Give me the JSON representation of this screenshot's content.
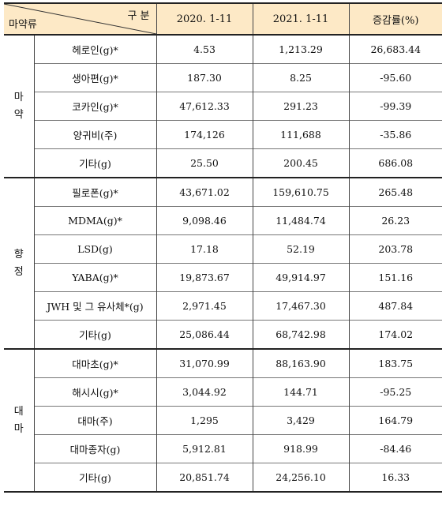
{
  "header": {
    "corner_top": "구 분",
    "corner_bottom": "마약류",
    "col1": "2020. 1-11",
    "col2": "2021. 1-11",
    "col3": "증감률(%)"
  },
  "groups": [
    {
      "category": "마\n약",
      "rows": [
        {
          "item": "헤로인(g)*",
          "v2020": "4.53",
          "v2021": "1,213.29",
          "change": "26,683.44"
        },
        {
          "item": "생아편(g)*",
          "v2020": "187.30",
          "v2021": "8.25",
          "change": "-95.60"
        },
        {
          "item": "코카인(g)*",
          "v2020": "47,612.33",
          "v2021": "291.23",
          "change": "-99.39"
        },
        {
          "item": "양귀비(주)",
          "v2020": "174,126",
          "v2021": "111,688",
          "change": "-35.86"
        },
        {
          "item": "기타(g)",
          "v2020": "25.50",
          "v2021": "200.45",
          "change": "686.08"
        }
      ]
    },
    {
      "category": "향\n정",
      "rows": [
        {
          "item": "필로폰(g)*",
          "v2020": "43,671.02",
          "v2021": "159,610.75",
          "change": "265.48"
        },
        {
          "item": "MDMA(g)*",
          "v2020": "9,098.46",
          "v2021": "11,484.74",
          "change": "26.23"
        },
        {
          "item": "LSD(g)",
          "v2020": "17.18",
          "v2021": "52.19",
          "change": "203.78"
        },
        {
          "item": "YABA(g)*",
          "v2020": "19,873.67",
          "v2021": "49,914.97",
          "change": "151.16"
        },
        {
          "item": "JWH 및 그 유사체*(g)",
          "v2020": "2,971.45",
          "v2021": "17,467.30",
          "change": "487.84"
        },
        {
          "item": "기타(g)",
          "v2020": "25,086.44",
          "v2021": "68,742.98",
          "change": "174.02"
        }
      ]
    },
    {
      "category": "대\n마",
      "rows": [
        {
          "item": "대마초(g)*",
          "v2020": "31,070.99",
          "v2021": "88,163.90",
          "change": "183.75"
        },
        {
          "item": "해시시(g)*",
          "v2020": "3,044.92",
          "v2021": "144.71",
          "change": "-95.25"
        },
        {
          "item": "대마(주)",
          "v2020": "1,295",
          "v2021": "3,429",
          "change": "164.79"
        },
        {
          "item": "대마종자(g)",
          "v2020": "5,912.81",
          "v2021": "918.99",
          "change": "-84.46"
        },
        {
          "item": "기타(g)",
          "v2020": "20,851.74",
          "v2021": "24,256.10",
          "change": "16.33"
        }
      ]
    }
  ]
}
